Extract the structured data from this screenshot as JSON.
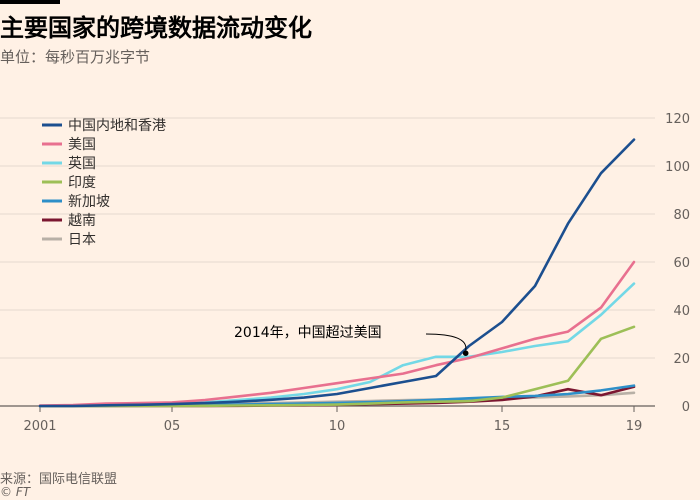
{
  "header": {
    "title": "主要国家的跨境数据流动变化",
    "subtitle": "单位：每秒百万兆字节"
  },
  "footer": {
    "source": "来源：国际电信联盟",
    "credit": "© FT"
  },
  "chart_data": {
    "type": "line",
    "title": "主要国家的跨境数据流动变化",
    "subtitle": "单位：每秒百万兆字节",
    "x": [
      2001,
      2002,
      2003,
      2004,
      2005,
      2006,
      2007,
      2008,
      2009,
      2010,
      2011,
      2012,
      2013,
      2014,
      2015,
      2016,
      2017,
      2018,
      2019
    ],
    "x_tick_values": [
      2001,
      2005,
      2010,
      2015,
      2019
    ],
    "x_tick_labels": [
      "2001",
      "05",
      "10",
      "15",
      "19"
    ],
    "xlim": [
      2001,
      2019
    ],
    "ylim": [
      0,
      120
    ],
    "y_ticks": [
      0,
      20,
      40,
      60,
      80,
      100,
      120
    ],
    "y_axis_position": "right",
    "grid": true,
    "legend_position": "top-left",
    "series": [
      {
        "name": "中国内地和香港",
        "color": "#1c4f8f",
        "values": [
          0,
          0,
          0.3,
          0.5,
          0.8,
          1.2,
          1.8,
          2.6,
          3.5,
          5,
          7.5,
          10,
          12.5,
          25,
          35,
          50,
          76,
          97,
          111
        ]
      },
      {
        "name": "美国",
        "color": "#e8708f",
        "values": [
          0.2,
          0.4,
          1,
          1.2,
          1.5,
          2.5,
          4,
          5.5,
          7.5,
          9.5,
          11.5,
          13.5,
          17,
          20,
          24,
          28,
          31,
          41,
          60
        ]
      },
      {
        "name": "英国",
        "color": "#73d8e6",
        "values": [
          0.1,
          0.2,
          0.5,
          0.7,
          1,
          1.5,
          2.5,
          3.5,
          5,
          7,
          10,
          17,
          20.5,
          20.5,
          22.5,
          25,
          27,
          38,
          51
        ]
      },
      {
        "name": "印度",
        "color": "#9dbf57",
        "values": [
          0,
          0,
          0,
          0,
          0,
          0.1,
          0.2,
          0.3,
          0.4,
          0.6,
          1,
          1.5,
          1.8,
          2,
          3.5,
          7,
          10.5,
          28,
          33
        ]
      },
      {
        "name": "新加坡",
        "color": "#2e8fc8",
        "values": [
          0,
          0,
          0.1,
          0.2,
          0.3,
          0.4,
          0.6,
          0.8,
          1,
          1.3,
          1.6,
          2,
          2.6,
          3.2,
          3.8,
          4.2,
          5,
          6.5,
          8.5
        ]
      },
      {
        "name": "越南",
        "color": "#7b1630",
        "values": [
          0,
          0,
          0,
          0,
          0,
          0,
          0.1,
          0.2,
          0.3,
          0.5,
          0.8,
          1,
          1.3,
          1.8,
          2.5,
          4,
          7,
          4.5,
          8
        ]
      },
      {
        "name": "日本",
        "color": "#b8b0a6",
        "values": [
          0.1,
          0.2,
          0.3,
          0.4,
          0.6,
          0.8,
          1,
          1.2,
          1.5,
          1.8,
          2.1,
          2.4,
          2.7,
          3,
          3.2,
          3.6,
          4,
          4.5,
          5.5
        ]
      }
    ],
    "annotations": [
      {
        "text": "2014年，中国超过美国",
        "x": 2013.9,
        "y": 22
      }
    ]
  }
}
